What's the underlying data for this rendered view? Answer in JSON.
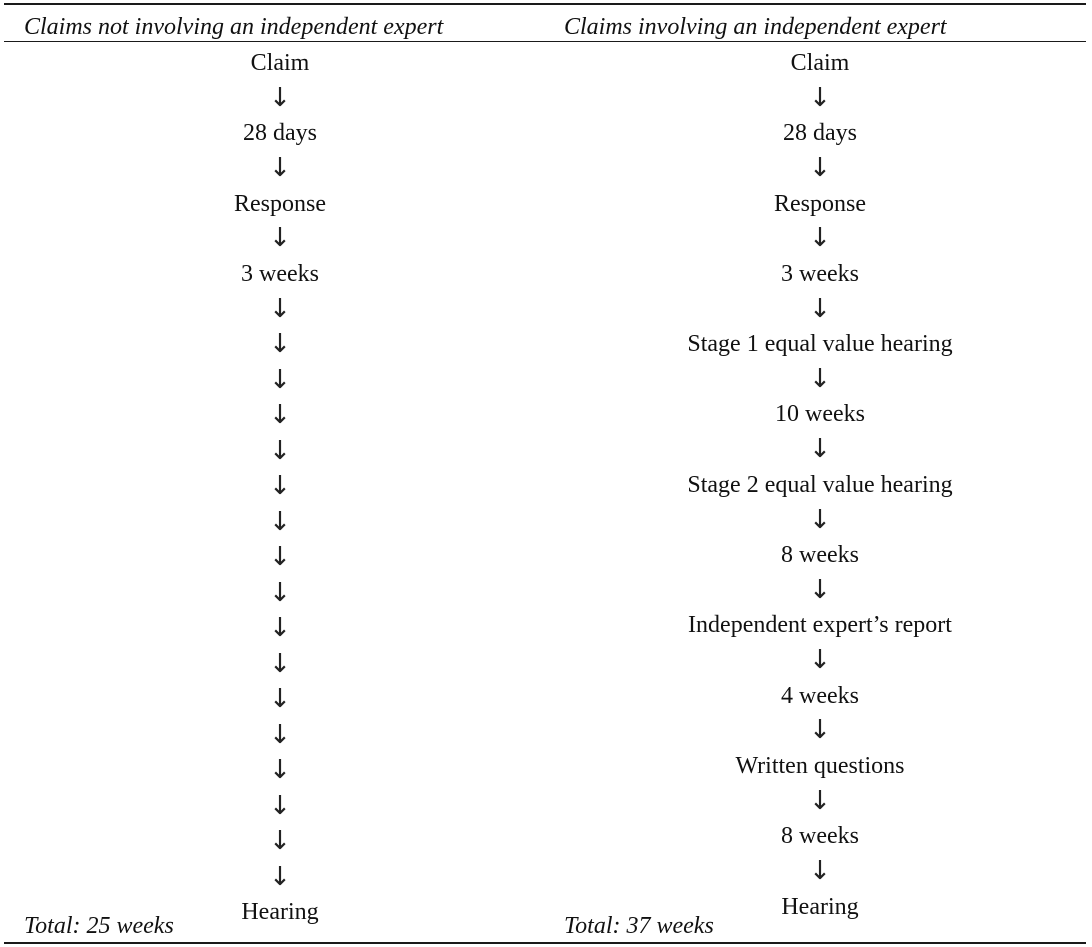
{
  "headers": {
    "left": "Claims not involving an independent expert",
    "right": "Claims involving an independent expert"
  },
  "left_steps": [
    "Claim",
    "28 days",
    "Response",
    "3 weeks",
    "Hearing"
  ],
  "left_arrows_before_hearing": 17,
  "right_steps": [
    "Claim",
    "28 days",
    "Response",
    "3 weeks",
    "Stage 1 equal value hearing",
    "10 weeks",
    "Stage 2 equal value hearing",
    "8 weeks",
    "Independent expert’s report",
    "4 weeks",
    "Written questions",
    "8 weeks",
    "Hearing"
  ],
  "arrow_glyph": "↓",
  "totals": {
    "left": "Total: 25 weeks",
    "right": "Total: 37 weeks"
  }
}
